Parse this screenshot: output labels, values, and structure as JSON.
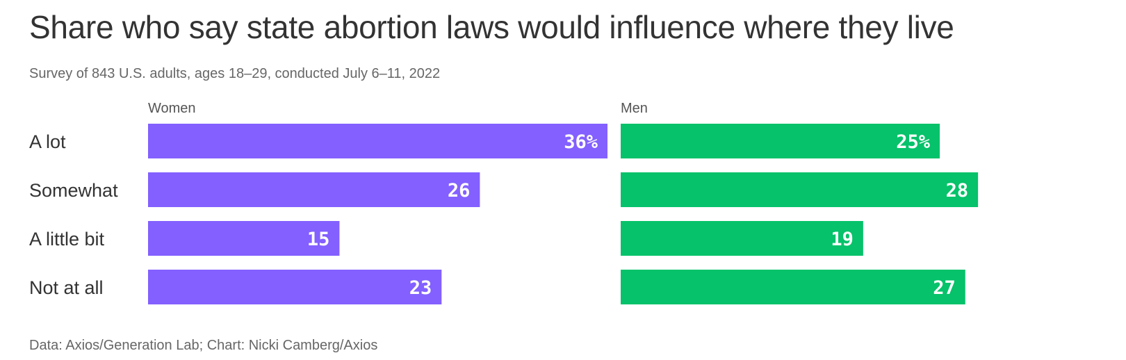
{
  "chart_data": {
    "type": "bar",
    "title": "Share who say state abortion laws would influence where they live",
    "subtitle": "Survey of 843 U.S. adults, ages 18–29, conducted July 6–11, 2022",
    "footer": "Data: Axios/Generation Lab; Chart: Nicki Camberg/Axios",
    "categories": [
      "A lot",
      "Somewhat",
      "A little bit",
      "Not at all"
    ],
    "series": [
      {
        "name": "Women",
        "values": [
          36,
          26,
          15,
          23
        ],
        "labels": [
          "36%",
          "26",
          "15",
          "23"
        ],
        "color": "#8360ff"
      },
      {
        "name": "Men",
        "values": [
          25,
          28,
          19,
          27
        ],
        "labels": [
          "25%",
          "28",
          "19",
          "27"
        ],
        "color": "#06c26a"
      }
    ],
    "xlim": [
      0,
      36
    ],
    "legend": "none",
    "grid": false
  }
}
